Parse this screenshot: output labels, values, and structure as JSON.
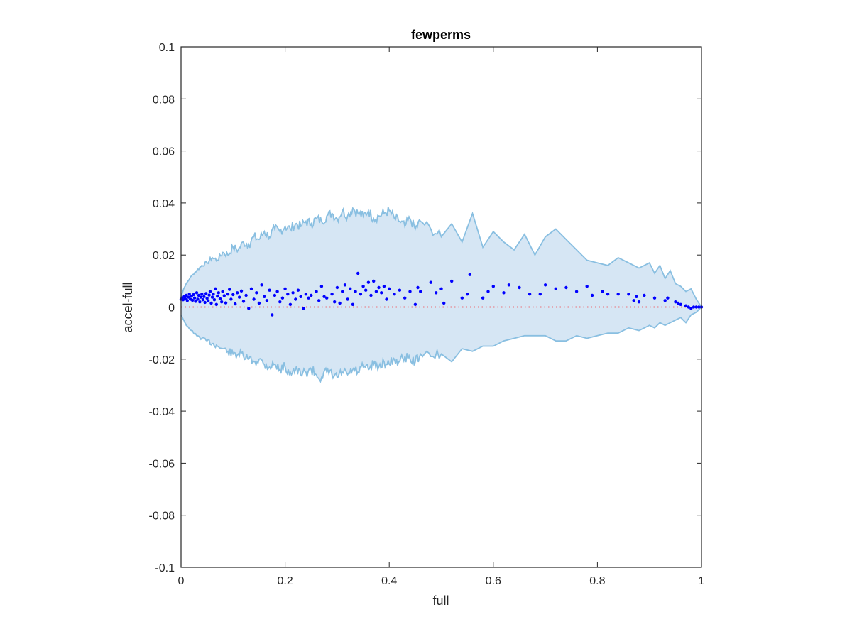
{
  "chart_data": {
    "type": "scatter",
    "title": "fewperms",
    "xlabel": "full",
    "ylabel": "accel-full",
    "xlim": [
      0,
      1
    ],
    "ylim": [
      -0.1,
      0.1
    ],
    "xticks": [
      "0",
      "0.2",
      "0.4",
      "0.6",
      "0.8",
      "1"
    ],
    "xtick_values": [
      0,
      0.2,
      0.4,
      0.6,
      0.8,
      1
    ],
    "yticks": [
      "0.1",
      "0.08",
      "0.06",
      "0.04",
      "0.02",
      "0",
      "-0.02",
      "-0.04",
      "-0.06",
      "-0.08",
      "-0.1"
    ],
    "ytick_values": [
      0.1,
      0.08,
      0.06,
      0.04,
      0.02,
      0,
      -0.02,
      -0.04,
      -0.06,
      -0.08,
      -0.1
    ],
    "grid": false,
    "reference_line": {
      "y": 0,
      "style": "dotted",
      "color": "#ff0000"
    },
    "band": {
      "color_fill": "#d6e6f4",
      "color_edge": "#89bfe1",
      "upper": {
        "x": [
          0,
          0.005,
          0.01,
          0.02,
          0.03,
          0.04,
          0.05,
          0.06,
          0.07,
          0.08,
          0.09,
          0.1,
          0.11,
          0.12,
          0.13,
          0.14,
          0.15,
          0.16,
          0.17,
          0.18,
          0.19,
          0.2,
          0.21,
          0.22,
          0.23,
          0.24,
          0.25,
          0.26,
          0.27,
          0.28,
          0.29,
          0.3,
          0.31,
          0.32,
          0.33,
          0.34,
          0.35,
          0.36,
          0.37,
          0.38,
          0.39,
          0.4,
          0.41,
          0.42,
          0.43,
          0.44,
          0.45,
          0.46,
          0.48,
          0.5,
          0.52,
          0.54,
          0.56,
          0.58,
          0.6,
          0.62,
          0.64,
          0.66,
          0.68,
          0.7,
          0.72,
          0.74,
          0.76,
          0.78,
          0.8,
          0.82,
          0.84,
          0.86,
          0.88,
          0.9,
          0.91,
          0.92,
          0.93,
          0.94,
          0.95,
          0.96,
          0.97,
          0.98,
          0.99,
          1.0
        ],
        "y": [
          0.004,
          0.007,
          0.009,
          0.012,
          0.014,
          0.016,
          0.017,
          0.019,
          0.018,
          0.021,
          0.02,
          0.023,
          0.022,
          0.025,
          0.024,
          0.027,
          0.026,
          0.029,
          0.027,
          0.03,
          0.029,
          0.031,
          0.03,
          0.032,
          0.031,
          0.033,
          0.032,
          0.034,
          0.033,
          0.035,
          0.036,
          0.034,
          0.037,
          0.035,
          0.038,
          0.036,
          0.035,
          0.037,
          0.034,
          0.035,
          0.036,
          0.037,
          0.034,
          0.033,
          0.031,
          0.034,
          0.03,
          0.033,
          0.03,
          0.027,
          0.032,
          0.025,
          0.036,
          0.023,
          0.029,
          0.025,
          0.022,
          0.028,
          0.02,
          0.027,
          0.03,
          0.026,
          0.022,
          0.018,
          0.017,
          0.016,
          0.019,
          0.017,
          0.015,
          0.017,
          0.013,
          0.016,
          0.011,
          0.014,
          0.009,
          0.008,
          0.006,
          0.007,
          0.003,
          0.0
        ],
        "samples": "jagged"
      },
      "lower": {
        "x": [
          0,
          0.005,
          0.01,
          0.02,
          0.03,
          0.04,
          0.05,
          0.06,
          0.07,
          0.08,
          0.09,
          0.1,
          0.11,
          0.12,
          0.13,
          0.14,
          0.15,
          0.16,
          0.17,
          0.18,
          0.19,
          0.2,
          0.21,
          0.22,
          0.23,
          0.24,
          0.25,
          0.26,
          0.27,
          0.28,
          0.29,
          0.3,
          0.31,
          0.32,
          0.33,
          0.34,
          0.35,
          0.36,
          0.37,
          0.38,
          0.39,
          0.4,
          0.41,
          0.42,
          0.43,
          0.44,
          0.45,
          0.46,
          0.48,
          0.5,
          0.52,
          0.54,
          0.56,
          0.58,
          0.6,
          0.62,
          0.64,
          0.66,
          0.68,
          0.7,
          0.72,
          0.74,
          0.76,
          0.78,
          0.8,
          0.82,
          0.84,
          0.86,
          0.88,
          0.9,
          0.91,
          0.92,
          0.93,
          0.94,
          0.95,
          0.96,
          0.97,
          0.98,
          0.99,
          1.0
        ],
        "y": [
          -0.003,
          -0.005,
          -0.007,
          -0.009,
          -0.011,
          -0.012,
          -0.013,
          -0.014,
          -0.015,
          -0.016,
          -0.017,
          -0.018,
          -0.018,
          -0.019,
          -0.02,
          -0.021,
          -0.02,
          -0.022,
          -0.023,
          -0.022,
          -0.024,
          -0.023,
          -0.025,
          -0.024,
          -0.026,
          -0.025,
          -0.024,
          -0.026,
          -0.027,
          -0.025,
          -0.026,
          -0.027,
          -0.025,
          -0.026,
          -0.024,
          -0.025,
          -0.023,
          -0.024,
          -0.022,
          -0.023,
          -0.021,
          -0.022,
          -0.02,
          -0.021,
          -0.019,
          -0.02,
          -0.021,
          -0.018,
          -0.019,
          -0.018,
          -0.021,
          -0.016,
          -0.017,
          -0.015,
          -0.015,
          -0.013,
          -0.012,
          -0.011,
          -0.011,
          -0.011,
          -0.013,
          -0.013,
          -0.011,
          -0.012,
          -0.011,
          -0.01,
          -0.01,
          -0.008,
          -0.009,
          -0.007,
          -0.008,
          -0.006,
          -0.007,
          -0.006,
          -0.005,
          -0.004,
          -0.006,
          -0.003,
          -0.002,
          0.0
        ],
        "samples": "jagged"
      }
    },
    "series": [
      {
        "color": "#0000ff",
        "x": [
          0.0,
          0.002,
          0.004,
          0.006,
          0.008,
          0.01,
          0.012,
          0.014,
          0.016,
          0.018,
          0.02,
          0.022,
          0.024,
          0.026,
          0.028,
          0.03,
          0.032,
          0.034,
          0.036,
          0.038,
          0.04,
          0.042,
          0.044,
          0.046,
          0.048,
          0.05,
          0.052,
          0.054,
          0.056,
          0.058,
          0.06,
          0.062,
          0.064,
          0.066,
          0.068,
          0.07,
          0.072,
          0.075,
          0.078,
          0.08,
          0.083,
          0.086,
          0.09,
          0.093,
          0.096,
          0.1,
          0.104,
          0.108,
          0.112,
          0.116,
          0.12,
          0.125,
          0.13,
          0.135,
          0.14,
          0.145,
          0.15,
          0.155,
          0.16,
          0.165,
          0.17,
          0.175,
          0.18,
          0.185,
          0.19,
          0.195,
          0.2,
          0.205,
          0.21,
          0.215,
          0.22,
          0.225,
          0.23,
          0.235,
          0.24,
          0.245,
          0.25,
          0.26,
          0.265,
          0.27,
          0.275,
          0.28,
          0.29,
          0.295,
          0.3,
          0.305,
          0.31,
          0.315,
          0.32,
          0.325,
          0.33,
          0.335,
          0.34,
          0.345,
          0.35,
          0.355,
          0.36,
          0.365,
          0.37,
          0.375,
          0.38,
          0.385,
          0.39,
          0.395,
          0.4,
          0.41,
          0.42,
          0.43,
          0.44,
          0.45,
          0.455,
          0.46,
          0.48,
          0.49,
          0.5,
          0.505,
          0.52,
          0.54,
          0.55,
          0.555,
          0.58,
          0.59,
          0.6,
          0.62,
          0.63,
          0.65,
          0.67,
          0.69,
          0.7,
          0.72,
          0.74,
          0.76,
          0.78,
          0.79,
          0.81,
          0.82,
          0.84,
          0.86,
          0.87,
          0.875,
          0.88,
          0.89,
          0.91,
          0.93,
          0.935,
          0.95,
          0.955,
          0.96,
          0.97,
          0.975,
          0.98,
          0.985,
          0.99,
          0.995,
          1.0
        ],
        "y": [
          0.003,
          0.0035,
          0.0028,
          0.004,
          0.0032,
          0.0045,
          0.0025,
          0.0038,
          0.005,
          0.003,
          0.0042,
          0.0026,
          0.0048,
          0.0035,
          0.0022,
          0.0055,
          0.003,
          0.0045,
          0.002,
          0.0038,
          0.005,
          0.0028,
          0.004,
          0.0018,
          0.0052,
          0.0034,
          0.0024,
          0.0046,
          0.006,
          0.0015,
          0.0038,
          0.005,
          0.0028,
          0.007,
          0.001,
          0.0042,
          0.0055,
          0.0032,
          0.002,
          0.006,
          0.0044,
          0.0016,
          0.005,
          0.0068,
          0.003,
          0.0048,
          0.0012,
          0.0055,
          0.0038,
          0.0062,
          0.0022,
          0.0045,
          -0.0005,
          0.007,
          0.003,
          0.0055,
          0.0015,
          0.0085,
          0.004,
          0.0025,
          0.0065,
          -0.003,
          0.0045,
          0.006,
          0.002,
          0.0035,
          0.007,
          0.005,
          0.001,
          0.0055,
          0.003,
          0.0065,
          0.004,
          -0.0005,
          0.005,
          0.0035,
          0.0045,
          0.006,
          0.0025,
          0.008,
          0.004,
          0.0035,
          0.005,
          0.002,
          0.0075,
          0.0015,
          0.006,
          0.0085,
          0.003,
          0.007,
          0.001,
          0.006,
          0.013,
          0.005,
          0.008,
          0.0065,
          0.0095,
          0.0045,
          0.01,
          0.006,
          0.0075,
          0.0055,
          0.008,
          0.003,
          0.007,
          0.005,
          0.0065,
          0.0035,
          0.006,
          0.001,
          0.0075,
          0.006,
          0.0095,
          0.0055,
          0.007,
          0.0015,
          0.01,
          0.0035,
          0.005,
          0.0125,
          0.0035,
          0.006,
          0.008,
          0.0055,
          0.0085,
          0.0075,
          0.005,
          0.005,
          0.0085,
          0.007,
          0.0075,
          0.006,
          0.008,
          0.0045,
          0.006,
          0.005,
          0.005,
          0.005,
          0.0025,
          0.004,
          0.002,
          0.0045,
          0.0035,
          0.0025,
          0.0035,
          0.002,
          0.0015,
          0.001,
          0.0005,
          0.0,
          -0.0005,
          0.0,
          0.0,
          0.0,
          0.0
        ]
      }
    ]
  }
}
